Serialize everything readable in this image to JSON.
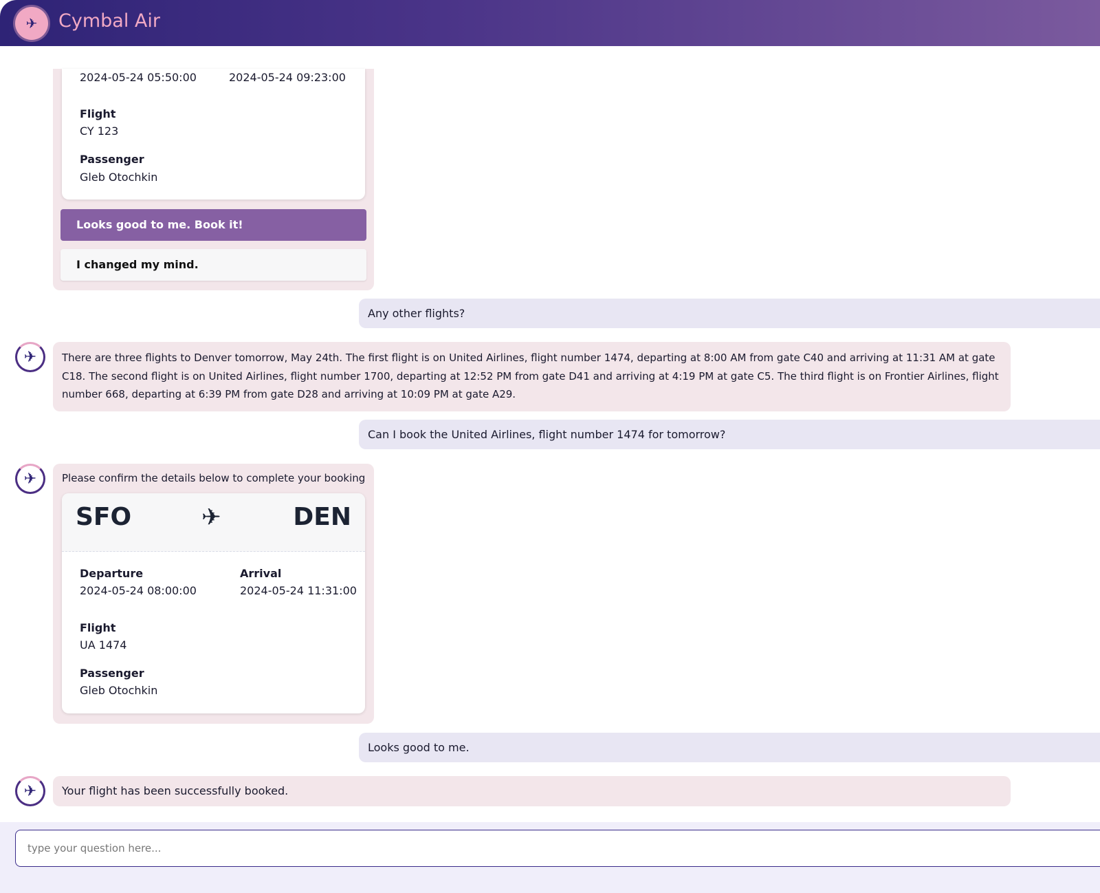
{
  "app": {
    "title": "Cymbal Air",
    "logo_icon": "airplane-icon"
  },
  "messages": [
    {
      "role": "bot",
      "card": {
        "departure_value": "2024-05-24 05:50:00",
        "arrival_value": "2024-05-24 09:23:00",
        "flight_label": "Flight",
        "flight_value": "CY 123",
        "passenger_label": "Passenger",
        "passenger_value": "Gleb Otochkin"
      },
      "buttons": {
        "confirm": "Looks good to me. Book it!",
        "cancel": "I changed my mind."
      }
    },
    {
      "role": "user",
      "text": "Any other flights?"
    },
    {
      "role": "bot",
      "text": "There are three flights to Denver tomorrow, May 24th. The first flight is on United Airlines, flight number 1474, departing at 8:00 AM from gate C40 and arriving at 11:31 AM at gate C18. The second flight is on United Airlines, flight number 1700, departing at 12:52 PM from gate D41 and arriving at 4:19 PM at gate C5. The third flight is on Frontier Airlines, flight number 668, departing at 6:39 PM from gate D28 and arriving at 10:09 PM at gate A29."
    },
    {
      "role": "user",
      "text": "Can I book the United Airlines, flight number 1474 for tomorrow?"
    },
    {
      "role": "bot",
      "text": "Please confirm the details below to complete your booking",
      "card": {
        "origin": "SFO",
        "destination": "DEN",
        "departure_label": "Departure",
        "departure_value": "2024-05-24 08:00:00",
        "arrival_label": "Arrival",
        "arrival_value": "2024-05-24 11:31:00",
        "flight_label": "Flight",
        "flight_value": "UA 1474",
        "passenger_label": "Passenger",
        "passenger_value": "Gleb Otochkin"
      }
    },
    {
      "role": "user",
      "text": "Looks good to me."
    },
    {
      "role": "bot",
      "text": "Your flight has been successfully booked."
    }
  ],
  "input": {
    "placeholder": "type your question here...",
    "value": ""
  },
  "colors": {
    "header_start": "#2e2376",
    "header_end": "#7b5a9e",
    "accent": "#8660a3",
    "bot_bubble": "#f3e6ea",
    "user_bubble": "#e8e6f3",
    "logo": "#f1a9c4"
  }
}
